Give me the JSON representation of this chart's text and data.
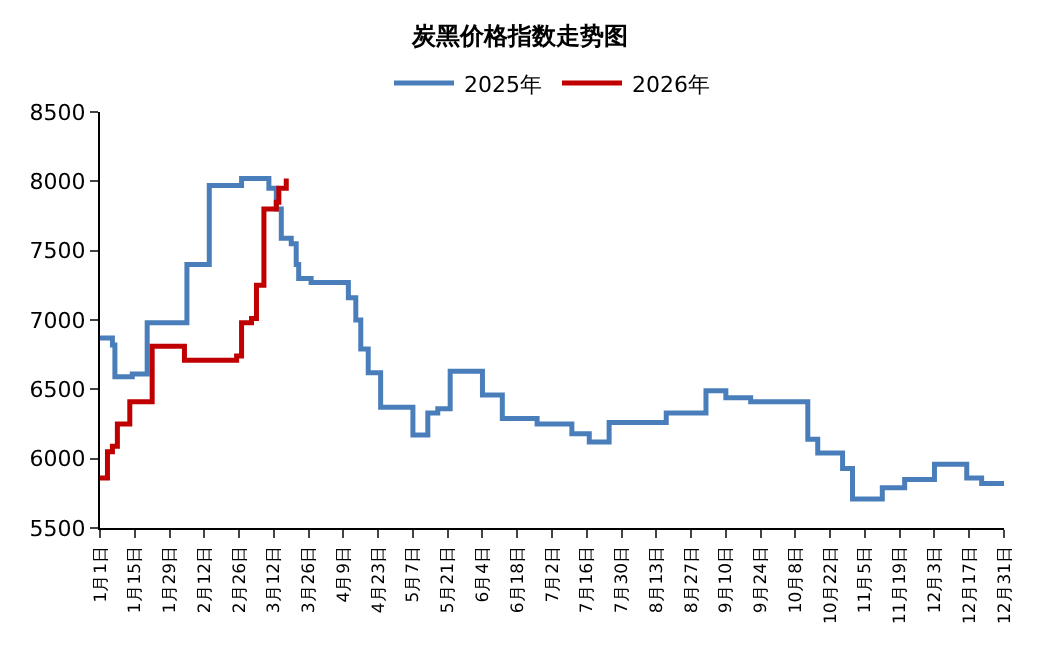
{
  "chart_data": {
    "type": "step",
    "title": "炭黑价格指数走势图",
    "legend": "top",
    "marker": "none",
    "line_style": "solid",
    "x": [
      "--01-01",
      "--01-06",
      "--01-07",
      "--01-14",
      "--01-20",
      "--02-05",
      "--02-14",
      "--02-27",
      "--03-10",
      "--03-13",
      "--03-15",
      "--03-19",
      "--03-21",
      "--03-22",
      "--03-27",
      "--04-11",
      "--04-14",
      "--04-16",
      "--04-19",
      "--04-24",
      "--05-07",
      "--05-13",
      "--05-17",
      "--05-22",
      "--06-04",
      "--06-12",
      "--06-26",
      "--07-10",
      "--07-17",
      "--07-25",
      "--08-17",
      "--09-02",
      "--09-10",
      "--09-20",
      "--10-13",
      "--10-17",
      "--10-27",
      "--10-31",
      "--11-12",
      "--11-21",
      "--12-03",
      "--12-16",
      "--12-22",
      "--12-31"
    ],
    "series": [
      {
        "name": "2025年",
        "color": "#4a7ebb",
        "values": [
          6870,
          6820,
          6590,
          6610,
          6980,
          7400,
          7970,
          8020,
          7950,
          7800,
          7590,
          7550,
          7400,
          7300,
          7270,
          7160,
          7000,
          6790,
          6620,
          6370,
          6170,
          6330,
          6360,
          6630,
          6460,
          6290,
          6250,
          6180,
          6120,
          6260,
          6330,
          6490,
          6440,
          6410,
          6140,
          6040,
          5930,
          5710,
          5790,
          5850,
          5960,
          5860,
          5820,
          5820
        ]
      },
      {
        "name": "2026年",
        "color": "#c00000",
        "x": [
          "--01-01",
          "--01-04",
          "--01-06",
          "--01-08",
          "--01-13",
          "--01-22",
          "--02-04",
          "--02-25",
          "--02-27",
          "--03-03",
          "--03-05",
          "--03-08",
          "--03-13",
          "--03-14",
          "--03-17"
        ],
        "values": [
          5860,
          6050,
          6090,
          6250,
          6410,
          6810,
          6710,
          6740,
          6980,
          7010,
          7250,
          7800,
          7850,
          7950,
          8020
        ]
      }
    ],
    "ylim": [
      5500,
      8500
    ],
    "yticks": [
      5500,
      6000,
      6500,
      7000,
      7500,
      8000,
      8500
    ],
    "xlim": [
      "--01-01",
      "--12-31"
    ],
    "xticks": [
      {
        "value": "--01-01",
        "label": "1月1日"
      },
      {
        "value": "--01-15",
        "label": "1月15日"
      },
      {
        "value": "--01-29",
        "label": "1月29日"
      },
      {
        "value": "--02-12",
        "label": "2月12日"
      },
      {
        "value": "--02-26",
        "label": "2月26日"
      },
      {
        "value": "--03-12",
        "label": "3月12日"
      },
      {
        "value": "--03-26",
        "label": "3月26日"
      },
      {
        "value": "--04-09",
        "label": "4月9日"
      },
      {
        "value": "--04-23",
        "label": "4月23日"
      },
      {
        "value": "--05-07",
        "label": "5月7日"
      },
      {
        "value": "--05-21",
        "label": "5月21日"
      },
      {
        "value": "--06-04",
        "label": "6月4日"
      },
      {
        "value": "--06-18",
        "label": "6月18日"
      },
      {
        "value": "--07-02",
        "label": "7月2日"
      },
      {
        "value": "--07-16",
        "label": "7月16日"
      },
      {
        "value": "--07-30",
        "label": "7月30日"
      },
      {
        "value": "--08-13",
        "label": "8月13日"
      },
      {
        "value": "--08-27",
        "label": "8月27日"
      },
      {
        "value": "--09-10",
        "label": "9月10日"
      },
      {
        "value": "--09-24",
        "label": "9月24日"
      },
      {
        "value": "--10-08",
        "label": "10月8日"
      },
      {
        "value": "--10-22",
        "label": "10月22日"
      },
      {
        "value": "--11-05",
        "label": "11月5日"
      },
      {
        "value": "--11-19",
        "label": "11月19日"
      },
      {
        "value": "--12-03",
        "label": "12月3日"
      },
      {
        "value": "--12-17",
        "label": "12月17日"
      },
      {
        "value": "--12-31",
        "label": "12月31日"
      }
    ]
  }
}
